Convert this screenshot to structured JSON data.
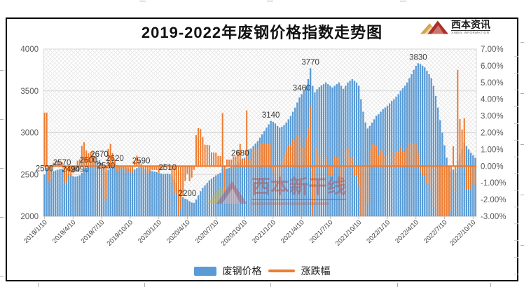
{
  "header": {
    "logo": {
      "name": "西本资讯",
      "subtitle": "XIBEN INFORMATION"
    }
  },
  "watermark": {
    "text": "西本新干线"
  },
  "chart_data": {
    "type": "bar",
    "title": "2019-2022年废钢价格指数走势图",
    "x_labels": [
      "2019/1/10",
      "2019/4/10",
      "2019/7/10",
      "2019/10/10",
      "2020/1/10",
      "2020/4/10",
      "2020/7/10",
      "2020/10/10",
      "2021/1/10",
      "2021/4/10",
      "2021/7/10",
      "2021/10/10",
      "2022/1/10",
      "2022/4/10",
      "2022/7/10",
      "2022/10/10"
    ],
    "points_per_tick": 13,
    "grid": "horizontal",
    "plot_fill": "diagonal-crosshatch",
    "y_left": {
      "min": 2000,
      "max": 4000,
      "step": 500,
      "labels": [
        "4000",
        "3500",
        "3000",
        "2500",
        "2000"
      ]
    },
    "y_right": {
      "min": -3,
      "max": 7,
      "step": 1,
      "labels": [
        "7.00%",
        "6.00%",
        "5.00%",
        "4.00%",
        "3.00%",
        "2.00%",
        "1.00%",
        "0.00%",
        "-1.00%",
        "-2.00%",
        "-3.00%"
      ]
    },
    "series": [
      {
        "name": "废钢价格",
        "type": "bar",
        "axis": "left",
        "color": "#5B9BD5",
        "values": [
          2500,
          2580,
          2555,
          2535,
          2540,
          2548,
          2556,
          2564,
          2570,
          2545,
          2520,
          2505,
          2490,
          2480,
          2472,
          2480,
          2490,
          2520,
          2556,
          2580,
          2600,
          2622,
          2644,
          2660,
          2662,
          2670,
          2636,
          2580,
          2530,
          2556,
          2590,
          2610,
          2620,
          2612,
          2602,
          2596,
          2590,
          2580,
          2572,
          2562,
          2552,
          2560,
          2576,
          2586,
          2590,
          2578,
          2566,
          2554,
          2546,
          2540,
          2534,
          2528,
          2518,
          2512,
          2506,
          2508,
          2510,
          2505,
          2480,
          2440,
          2400,
          2330,
          2270,
          2230,
          2210,
          2200,
          2180,
          2165,
          2160,
          2200,
          2250,
          2300,
          2340,
          2370,
          2400,
          2430,
          2450,
          2470,
          2490,
          2505,
          2520,
          2600,
          2560,
          2570,
          2580,
          2590,
          2605,
          2620,
          2645,
          2680,
          2690,
          2700,
          2790,
          2800,
          2810,
          2840,
          2870,
          2900,
          2940,
          2980,
          3020,
          3060,
          3100,
          3140,
          3130,
          3110,
          3080,
          3060,
          3070,
          3090,
          3120,
          3160,
          3200,
          3250,
          3300,
          3360,
          3420,
          3460,
          3500,
          3560,
          3640,
          3770,
          3560,
          3480,
          3520,
          3545,
          3565,
          3580,
          3600,
          3580,
          3560,
          3540,
          3560,
          3580,
          3600,
          3560,
          3525,
          3560,
          3600,
          3620,
          3640,
          3620,
          3600,
          3560,
          3400,
          3250,
          3120,
          3050,
          3080,
          3120,
          3160,
          3200,
          3220,
          3250,
          3280,
          3300,
          3320,
          3350,
          3380,
          3400,
          3430,
          3460,
          3500,
          3530,
          3560,
          3600,
          3650,
          3700,
          3750,
          3800,
          3830,
          3820,
          3800,
          3780,
          3740,
          3700,
          3650,
          3560,
          3440,
          3300,
          3150,
          3000,
          2850,
          2700,
          2600,
          2530,
          2560,
          2520,
          2665,
          2740,
          2800,
          2880,
          2840,
          2800,
          2760,
          2730,
          2700
        ]
      },
      {
        "name": "涨跌幅",
        "type": "line",
        "axis": "right",
        "color": "#ED7D31",
        "derivation": "week-over-week percent change of 废钢价格, clipped to right-axis range",
        "first_value_pct": 3.2
      }
    ],
    "callouts": [
      {
        "week": 0,
        "label": "2500"
      },
      {
        "week": 8,
        "label": "2570"
      },
      {
        "week": 12,
        "label": "2490"
      },
      {
        "week": 16,
        "label": "2490"
      },
      {
        "week": 20,
        "label": "2600"
      },
      {
        "week": 25,
        "label": "2670"
      },
      {
        "week": 28,
        "label": "2530"
      },
      {
        "week": 32,
        "label": "2620"
      },
      {
        "week": 44,
        "label": "2590"
      },
      {
        "week": 56,
        "label": "2510"
      },
      {
        "week": 65,
        "label": "2200"
      },
      {
        "week": 89,
        "label": "2680"
      },
      {
        "week": 103,
        "label": "3140"
      },
      {
        "week": 117,
        "label": "3460"
      },
      {
        "week": 121,
        "label": "3770"
      },
      {
        "week": 170,
        "label": "3830"
      }
    ]
  }
}
